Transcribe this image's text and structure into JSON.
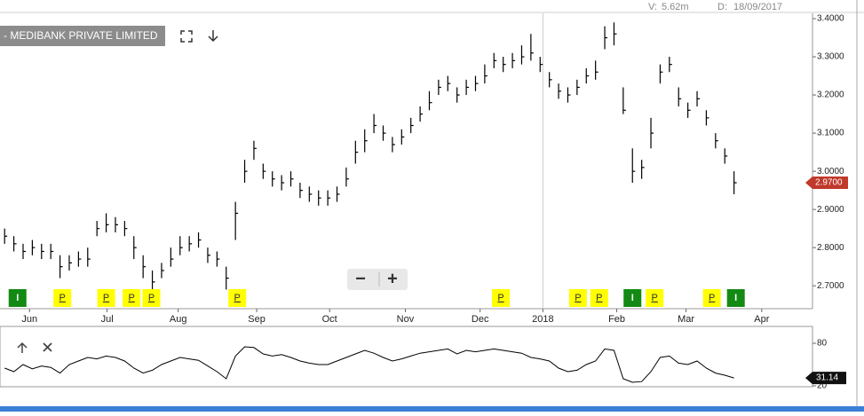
{
  "chart_data": {
    "type": "ohlc",
    "title": "- MEDIBANK PRIVATE LIMITED",
    "header": {
      "volume_label": "V:",
      "volume": "5.62m",
      "date_label": "D:",
      "date": "18/09/2017"
    },
    "zoom_out": "−",
    "zoom_in": "+",
    "color": "#000000",
    "xlim": [
      -0.5,
      87.5
    ],
    "xticks": [
      {
        "value": 2.7,
        "label": "Jun"
      },
      {
        "value": 11.1,
        "label": "Jul"
      },
      {
        "value": 18.8,
        "label": "Aug"
      },
      {
        "value": 27.3,
        "label": "Sep"
      },
      {
        "value": 35.2,
        "label": "Oct"
      },
      {
        "value": 43.4,
        "label": "Nov"
      },
      {
        "value": 51.5,
        "label": "Dec"
      },
      {
        "value": 58.3,
        "label": "2018"
      },
      {
        "value": 66.3,
        "label": "Feb"
      },
      {
        "value": 73.8,
        "label": "Mar"
      },
      {
        "value": 82,
        "label": "Apr"
      }
    ],
    "year_divider": 58.3,
    "ylim": [
      2.64,
      3.414
    ],
    "yticks": [
      {
        "value": 3.4,
        "label": "3.4000"
      },
      {
        "value": 3.3,
        "label": "3.3000"
      },
      {
        "value": 3.2,
        "label": "3.2000"
      },
      {
        "value": 3.1,
        "label": "3.1000"
      },
      {
        "value": 3.0,
        "label": "3.0000"
      },
      {
        "value": 2.9,
        "label": "2.9000"
      },
      {
        "value": 2.8,
        "label": "2.8000"
      },
      {
        "value": 2.7,
        "label": "2.7000"
      }
    ],
    "last_price": {
      "value": 2.97,
      "label": "2.9700"
    },
    "last_price_color": "#c0392b",
    "low": [
      2.81,
      2.79,
      2.77,
      2.78,
      2.77,
      2.77,
      2.72,
      2.74,
      2.75,
      2.75,
      2.83,
      2.84,
      2.84,
      2.83,
      2.77,
      2.72,
      2.68,
      2.72,
      2.75,
      2.78,
      2.79,
      2.8,
      2.76,
      2.75,
      2.69,
      2.82,
      2.97,
      3.03,
      2.98,
      2.96,
      2.95,
      2.96,
      2.93,
      2.92,
      2.91,
      2.91,
      2.92,
      2.96,
      3.02,
      3.05,
      3.1,
      3.08,
      3.05,
      3.07,
      3.1,
      3.13,
      3.16,
      3.2,
      3.21,
      3.18,
      3.2,
      3.21,
      3.23,
      3.27,
      3.26,
      3.27,
      3.28,
      3.29,
      3.26,
      3.22,
      3.19,
      3.18,
      3.2,
      3.23,
      3.24,
      3.32,
      3.33,
      3.15,
      2.97,
      2.98,
      3.06,
      3.23,
      3.26,
      3.17,
      3.14,
      3.17,
      3.12,
      3.06,
      3.02,
      2.94
    ],
    "high": [
      2.85,
      2.83,
      2.81,
      2.82,
      2.81,
      2.81,
      2.78,
      2.78,
      2.79,
      2.8,
      2.87,
      2.89,
      2.88,
      2.87,
      2.83,
      2.78,
      2.74,
      2.76,
      2.8,
      2.83,
      2.83,
      2.84,
      2.8,
      2.79,
      2.75,
      2.92,
      3.03,
      3.08,
      3.02,
      3.0,
      2.99,
      3.0,
      2.97,
      2.96,
      2.95,
      2.95,
      2.96,
      3.01,
      3.08,
      3.11,
      3.15,
      3.12,
      3.09,
      3.11,
      3.14,
      3.17,
      3.21,
      3.24,
      3.25,
      3.22,
      3.24,
      3.25,
      3.28,
      3.31,
      3.3,
      3.31,
      3.33,
      3.36,
      3.3,
      3.26,
      3.23,
      3.22,
      3.24,
      3.27,
      3.29,
      3.38,
      3.39,
      3.22,
      3.06,
      3.03,
      3.14,
      3.28,
      3.3,
      3.22,
      3.18,
      3.21,
      3.16,
      3.1,
      3.06,
      3.0
    ],
    "close": [
      2.83,
      2.81,
      2.79,
      2.8,
      2.79,
      2.79,
      2.75,
      2.76,
      2.77,
      2.77,
      2.85,
      2.86,
      2.86,
      2.85,
      2.8,
      2.75,
      2.71,
      2.74,
      2.77,
      2.8,
      2.81,
      2.82,
      2.78,
      2.77,
      2.72,
      2.89,
      3.0,
      3.06,
      3.0,
      2.98,
      2.97,
      2.98,
      2.95,
      2.94,
      2.93,
      2.93,
      2.94,
      2.98,
      3.05,
      3.08,
      3.12,
      3.1,
      3.07,
      3.09,
      3.12,
      3.15,
      3.18,
      3.22,
      3.23,
      3.2,
      3.22,
      3.23,
      3.25,
      3.29,
      3.28,
      3.29,
      3.3,
      3.31,
      3.28,
      3.24,
      3.21,
      3.2,
      3.22,
      3.25,
      3.26,
      3.35,
      3.36,
      3.16,
      3.0,
      3.01,
      3.1,
      3.26,
      3.28,
      3.19,
      3.16,
      3.19,
      3.14,
      3.08,
      3.04,
      2.97
    ],
    "event_colors": {
      "P": "#ffff00",
      "I": "#138a13"
    },
    "events": [
      {
        "label": "I",
        "x": 1.4
      },
      {
        "label": "P",
        "x": 6.25
      },
      {
        "label": "P",
        "x": 11
      },
      {
        "label": "P",
        "x": 13.75
      },
      {
        "label": "P",
        "x": 15.9
      },
      {
        "label": "P",
        "x": 25.2
      },
      {
        "label": "P",
        "x": 53.75
      },
      {
        "label": "P",
        "x": 62.1
      },
      {
        "label": "P",
        "x": 64.4
      },
      {
        "label": "I",
        "x": 68
      },
      {
        "label": "P",
        "x": 70.4
      },
      {
        "label": "P",
        "x": 76.6
      },
      {
        "label": "I",
        "x": 79.2
      }
    ],
    "indicator": {
      "ylim": [
        18.75,
        103.75
      ],
      "yticks": [
        80,
        20
      ],
      "values": [
        45,
        40,
        50,
        44,
        48,
        46,
        38,
        50,
        55,
        60,
        58,
        62,
        60,
        55,
        45,
        38,
        42,
        50,
        55,
        60,
        58,
        56,
        48,
        40,
        30,
        62,
        75,
        74,
        65,
        62,
        64,
        60,
        55,
        52,
        50,
        50,
        55,
        60,
        65,
        70,
        66,
        60,
        55,
        58,
        62,
        66,
        68,
        70,
        72,
        65,
        70,
        68,
        70,
        72,
        70,
        68,
        66,
        60,
        58,
        55,
        45,
        40,
        42,
        50,
        55,
        72,
        70,
        30,
        25,
        26,
        40,
        60,
        62,
        52,
        50,
        55,
        45,
        38,
        35,
        31.14
      ]
    }
  }
}
